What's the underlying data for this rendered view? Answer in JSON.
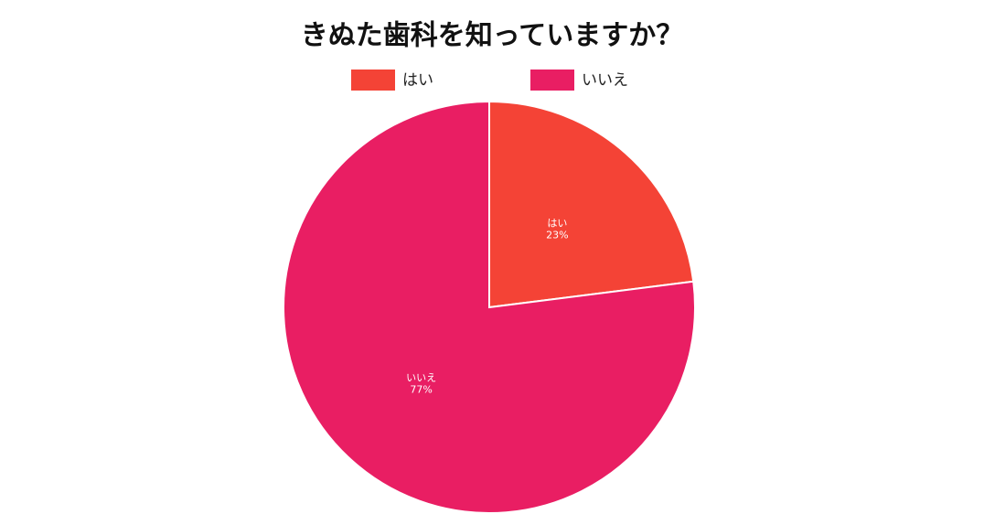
{
  "chart_data": {
    "type": "pie",
    "title": "きぬた歯科を知っていますか？",
    "categories": [
      "はい",
      "いいえ"
    ],
    "values": [
      23,
      77
    ],
    "value_labels": [
      "23%",
      "77%"
    ],
    "colors": [
      "#f44336",
      "#e91e63"
    ],
    "legend": "top"
  }
}
